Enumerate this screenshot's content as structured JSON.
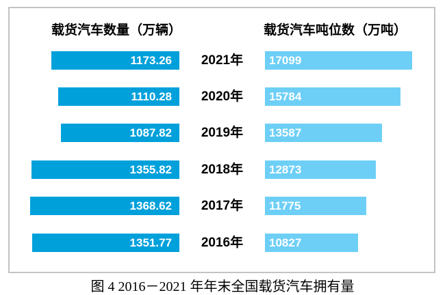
{
  "figure": {
    "caption": "图 4  2016－2021 年年末全国载货汽车拥有量"
  },
  "chart": {
    "left_title": "载货汽车数量（万辆）",
    "right_title": "载货汽车吨位数（万吨）"
  },
  "colors": {
    "quantity_bar": "#00A0DB",
    "tonnage_bar": "#6DCFF6",
    "frame_border": "#C3C3C3",
    "bar_value_text": "#FFFFFF",
    "year_text": "#000000"
  },
  "chart_data": {
    "type": "bar",
    "orientation": "horizontal-paired",
    "title": "图 4  2016－2021 年年末全国载货汽车拥有量",
    "categories": [
      "2021年",
      "2020年",
      "2019年",
      "2018年",
      "2017年",
      "2016年"
    ],
    "series": [
      {
        "name": "载货汽车数量（万辆）",
        "align": "right",
        "color": "#00A0DB",
        "values": [
          1173.26,
          1110.28,
          1087.82,
          1355.82,
          1368.62,
          1351.77
        ],
        "labels": [
          "1173.26",
          "1110.28",
          "1087.82",
          "1355.82",
          "1368.62",
          "1351.77"
        ]
      },
      {
        "name": "载货汽车吨位数（万吨）",
        "align": "left",
        "color": "#6DCFF6",
        "values": [
          17099,
          15784,
          13587,
          12873,
          11775,
          10827
        ],
        "labels": [
          "17099",
          "15784",
          "13587",
          "12873",
          "11775",
          "10827"
        ]
      }
    ],
    "legend_position": "top",
    "grid": false,
    "value_labels": "inside-bars"
  }
}
